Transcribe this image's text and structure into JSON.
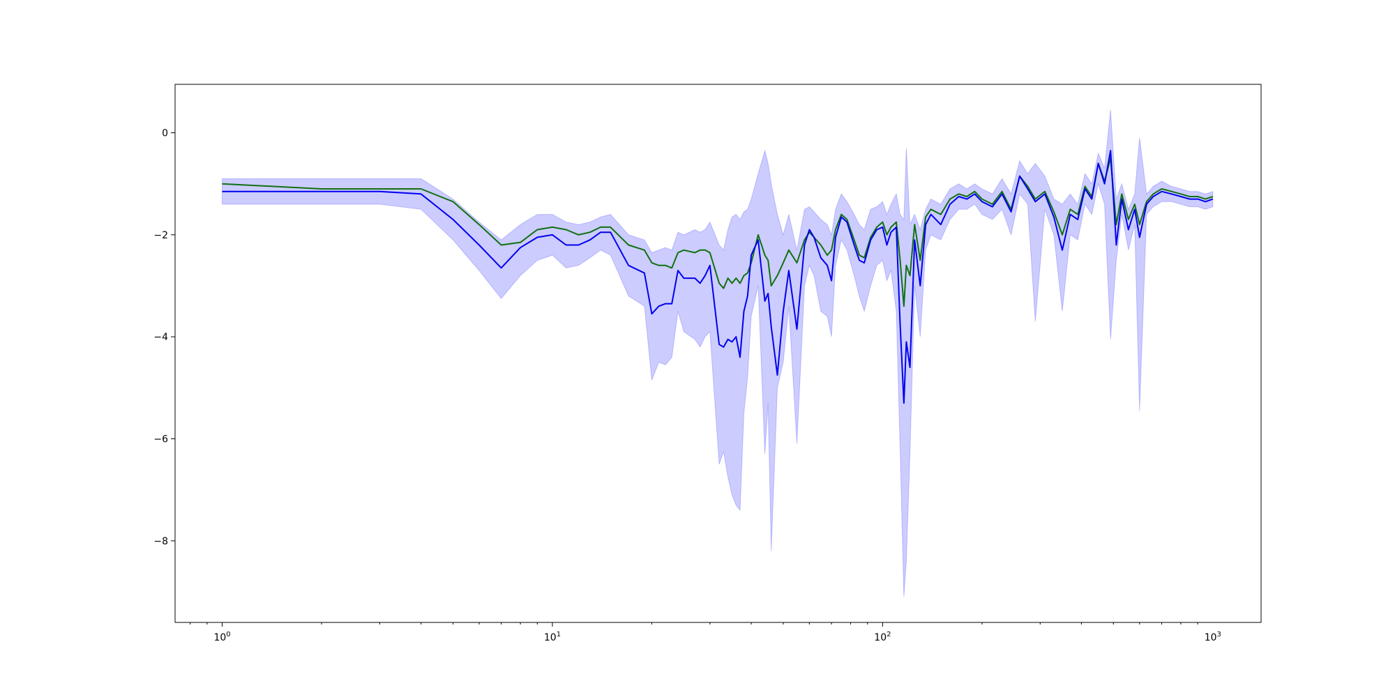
{
  "chart_data": {
    "type": "line",
    "title": "",
    "xlabel": "",
    "ylabel": "",
    "xscale": "log",
    "xlim": [
      0.72,
      1400
    ],
    "ylim": [
      -9.6,
      0.95
    ],
    "grid": false,
    "legend": "none",
    "x_ticks": [
      {
        "value": 1,
        "base": "10",
        "exp": "0"
      },
      {
        "value": 10,
        "base": "10",
        "exp": "1"
      },
      {
        "value": 100,
        "base": "10",
        "exp": "2"
      },
      {
        "value": 1000,
        "base": "10",
        "exp": "3"
      }
    ],
    "y_ticks": [
      {
        "value": 0,
        "label": "0"
      },
      {
        "value": -2,
        "label": "−2"
      },
      {
        "value": -4,
        "label": "−4"
      },
      {
        "value": -6,
        "label": "−6"
      },
      {
        "value": -8,
        "label": "−8"
      }
    ],
    "series": [
      {
        "color": "#0000ee",
        "band_color": "#0000ff",
        "band_opacity": 0.2,
        "x": [
          1,
          2,
          3,
          4,
          5,
          6,
          7,
          8,
          9,
          10,
          11,
          12,
          13,
          14,
          15,
          17,
          19,
          20,
          21,
          22,
          23,
          24,
          25,
          27,
          28,
          29,
          30,
          32,
          33,
          34,
          35,
          36,
          37,
          38,
          39,
          40,
          42,
          44,
          45,
          46,
          48,
          50,
          52,
          55,
          58,
          60,
          62,
          65,
          68,
          70,
          72,
          75,
          78,
          82,
          85,
          88,
          92,
          96,
          100,
          103,
          106,
          110,
          113,
          116,
          118,
          121,
          125,
          130,
          135,
          140,
          150,
          160,
          170,
          180,
          190,
          200,
          215,
          230,
          245,
          260,
          275,
          290,
          310,
          330,
          350,
          370,
          390,
          410,
          430,
          450,
          470,
          490,
          510,
          530,
          555,
          580,
          600,
          630,
          660,
          700,
          750,
          800,
          850,
          900,
          950,
          1000
        ],
        "y": [
          -1.15,
          -1.15,
          -1.15,
          -1.2,
          -1.7,
          -2.2,
          -2.65,
          -2.25,
          -2.05,
          -2.0,
          -2.2,
          -2.2,
          -2.1,
          -1.95,
          -1.95,
          -2.6,
          -2.75,
          -3.55,
          -3.4,
          -3.35,
          -3.35,
          -2.7,
          -2.85,
          -2.85,
          -2.95,
          -2.8,
          -2.6,
          -4.15,
          -4.2,
          -4.05,
          -4.1,
          -4.0,
          -4.4,
          -3.5,
          -3.2,
          -2.4,
          -2.1,
          -3.3,
          -3.15,
          -3.8,
          -4.75,
          -3.5,
          -2.7,
          -3.85,
          -2.2,
          -1.9,
          -2.05,
          -2.45,
          -2.6,
          -2.9,
          -2.05,
          -1.65,
          -1.75,
          -2.2,
          -2.5,
          -2.55,
          -2.1,
          -1.9,
          -1.85,
          -2.2,
          -1.95,
          -1.85,
          -3.75,
          -5.3,
          -4.1,
          -4.6,
          -2.1,
          -3.0,
          -1.8,
          -1.6,
          -1.8,
          -1.4,
          -1.25,
          -1.3,
          -1.2,
          -1.35,
          -1.45,
          -1.2,
          -1.55,
          -0.85,
          -1.1,
          -1.35,
          -1.2,
          -1.65,
          -2.3,
          -1.6,
          -1.7,
          -1.1,
          -1.3,
          -0.6,
          -1.0,
          -0.35,
          -2.2,
          -1.3,
          -1.9,
          -1.5,
          -2.05,
          -1.4,
          -1.25,
          -1.15,
          -1.2,
          -1.25,
          -1.3,
          -1.3,
          -1.35,
          -1.3
        ],
        "lower": [
          -1.4,
          -1.4,
          -1.4,
          -1.5,
          -2.1,
          -2.7,
          -3.25,
          -2.8,
          -2.5,
          -2.4,
          -2.65,
          -2.6,
          -2.45,
          -2.3,
          -2.4,
          -3.2,
          -3.4,
          -4.85,
          -4.5,
          -4.55,
          -4.4,
          -3.5,
          -3.9,
          -4.05,
          -4.2,
          -4.0,
          -3.9,
          -6.5,
          -6.25,
          -6.75,
          -7.1,
          -7.3,
          -7.4,
          -5.5,
          -4.8,
          -3.6,
          -3.0,
          -6.3,
          -5.3,
          -8.2,
          -5.0,
          -4.5,
          -3.4,
          -6.1,
          -3.0,
          -2.6,
          -2.8,
          -3.5,
          -3.6,
          -4.0,
          -2.6,
          -2.1,
          -2.3,
          -2.8,
          -3.2,
          -3.5,
          -3.0,
          -2.6,
          -2.5,
          -2.9,
          -2.7,
          -3.5,
          -6.2,
          -9.1,
          -8.4,
          -6.3,
          -3.0,
          -4.0,
          -2.3,
          -2.0,
          -2.1,
          -1.7,
          -1.5,
          -1.5,
          -1.4,
          -1.6,
          -1.7,
          -1.5,
          -2.0,
          -1.2,
          -1.4,
          -3.7,
          -1.5,
          -2.0,
          -3.5,
          -2.0,
          -2.1,
          -1.4,
          -1.6,
          -1.0,
          -1.4,
          -4.05,
          -2.5,
          -1.6,
          -2.3,
          -1.8,
          -5.45,
          -1.6,
          -1.45,
          -1.35,
          -1.35,
          -1.4,
          -1.45,
          -1.45,
          -1.5,
          -1.45
        ],
        "upper": [
          -0.9,
          -0.9,
          -0.9,
          -0.9,
          -1.3,
          -1.75,
          -2.1,
          -1.8,
          -1.6,
          -1.6,
          -1.75,
          -1.8,
          -1.75,
          -1.65,
          -1.6,
          -2.0,
          -2.1,
          -2.35,
          -2.3,
          -2.25,
          -2.3,
          -1.95,
          -2.0,
          -1.9,
          -1.95,
          -1.9,
          -1.75,
          -2.2,
          -2.3,
          -1.9,
          -1.65,
          -1.6,
          -1.7,
          -1.55,
          -1.5,
          -1.3,
          -0.8,
          -0.35,
          -0.6,
          -1.0,
          -1.6,
          -2.0,
          -1.6,
          -2.3,
          -1.5,
          -1.45,
          -1.55,
          -1.7,
          -1.8,
          -2.0,
          -1.5,
          -1.2,
          -1.35,
          -1.6,
          -1.8,
          -1.9,
          -1.5,
          -1.45,
          -1.35,
          -1.6,
          -1.4,
          -1.2,
          -1.6,
          -1.7,
          -0.3,
          -1.8,
          -1.6,
          -1.9,
          -1.5,
          -1.3,
          -1.4,
          -1.1,
          -1.0,
          -1.1,
          -1.0,
          -1.1,
          -1.2,
          -0.9,
          -1.2,
          -0.55,
          -0.8,
          -0.6,
          -0.85,
          -1.3,
          -1.4,
          -1.2,
          -1.4,
          -0.8,
          -1.0,
          -0.4,
          -0.7,
          0.45,
          -1.3,
          -1.0,
          -1.5,
          -1.2,
          -0.1,
          -1.2,
          -1.05,
          -0.95,
          -1.05,
          -1.1,
          -1.15,
          -1.15,
          -1.2,
          -1.15
        ]
      },
      {
        "color": "#107010",
        "band_color": "#2ca02c",
        "band_opacity": 0.25,
        "x": [
          1,
          2,
          3,
          4,
          5,
          6,
          7,
          8,
          9,
          10,
          11,
          12,
          13,
          14,
          15,
          17,
          19,
          20,
          21,
          22,
          23,
          24,
          25,
          27,
          28,
          29,
          30,
          32,
          33,
          34,
          35,
          36,
          37,
          38,
          39,
          40,
          42,
          44,
          45,
          46,
          48,
          50,
          52,
          55,
          58,
          60,
          62,
          65,
          68,
          70,
          72,
          75,
          78,
          82,
          85,
          88,
          92,
          96,
          100,
          103,
          106,
          110,
          113,
          116,
          118,
          121,
          125,
          130,
          135,
          140,
          150,
          160,
          170,
          180,
          190,
          200,
          215,
          230,
          245,
          260,
          275,
          290,
          310,
          330,
          350,
          370,
          390,
          410,
          430,
          450,
          470,
          490,
          510,
          530,
          555,
          580,
          600,
          630,
          660,
          700,
          750,
          800,
          850,
          900,
          950,
          1000
        ],
        "y": [
          -1.0,
          -1.1,
          -1.1,
          -1.1,
          -1.35,
          -1.8,
          -2.2,
          -2.15,
          -1.9,
          -1.85,
          -1.9,
          -2.0,
          -1.95,
          -1.85,
          -1.85,
          -2.2,
          -2.3,
          -2.55,
          -2.6,
          -2.6,
          -2.65,
          -2.35,
          -2.3,
          -2.35,
          -2.3,
          -2.3,
          -2.35,
          -2.95,
          -3.05,
          -2.85,
          -2.95,
          -2.85,
          -2.95,
          -2.8,
          -2.75,
          -2.55,
          -2.0,
          -2.4,
          -2.5,
          -3.0,
          -2.8,
          -2.55,
          -2.3,
          -2.55,
          -2.1,
          -1.95,
          -2.05,
          -2.2,
          -2.4,
          -2.3,
          -1.9,
          -1.6,
          -1.7,
          -2.1,
          -2.4,
          -2.45,
          -2.05,
          -1.85,
          -1.75,
          -2.0,
          -1.85,
          -1.75,
          -2.5,
          -3.4,
          -2.6,
          -2.8,
          -1.8,
          -2.5,
          -1.65,
          -1.5,
          -1.6,
          -1.3,
          -1.2,
          -1.25,
          -1.15,
          -1.3,
          -1.4,
          -1.15,
          -1.5,
          -0.85,
          -1.05,
          -1.3,
          -1.15,
          -1.55,
          -2.0,
          -1.5,
          -1.6,
          -1.05,
          -1.25,
          -0.6,
          -0.95,
          -0.5,
          -1.8,
          -1.2,
          -1.7,
          -1.4,
          -1.8,
          -1.35,
          -1.2,
          -1.1,
          -1.15,
          -1.2,
          -1.25,
          -1.25,
          -1.3,
          -1.25
        ]
      }
    ]
  }
}
